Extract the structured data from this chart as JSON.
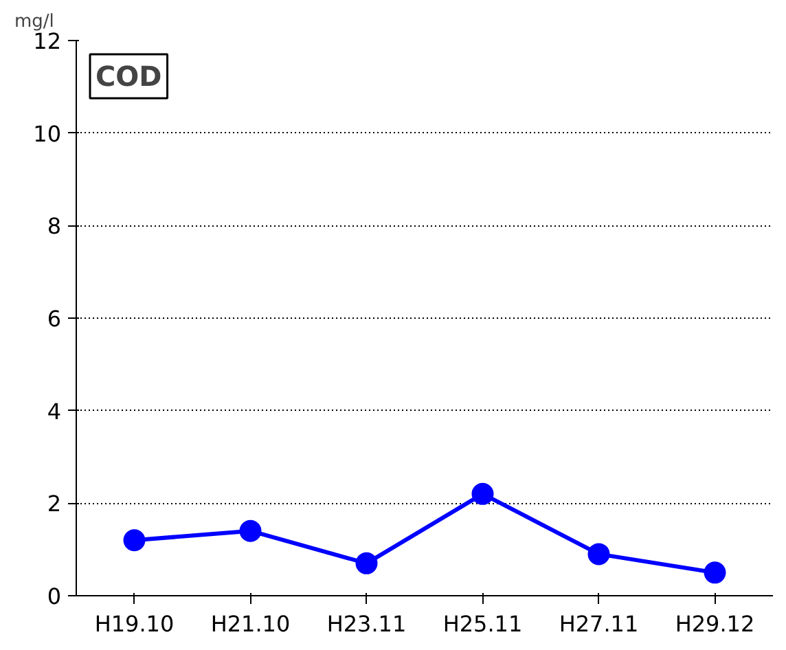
{
  "chart_data": {
    "type": "line",
    "title": "COD",
    "ylabel": "mg/l",
    "categories": [
      "H19.10",
      "H21.10",
      "H23.11",
      "H25.11",
      "H27.11",
      "H29.12"
    ],
    "series": [
      {
        "color": "#0000ff",
        "values": [
          1.2,
          1.4,
          0.7,
          2.2,
          0.9,
          0.5
        ]
      }
    ],
    "ylim": [
      0,
      12
    ],
    "yticks": [
      0,
      2,
      4,
      6,
      8,
      10,
      12
    ],
    "grid": "y",
    "marker": "circle",
    "line_style": "solid"
  }
}
